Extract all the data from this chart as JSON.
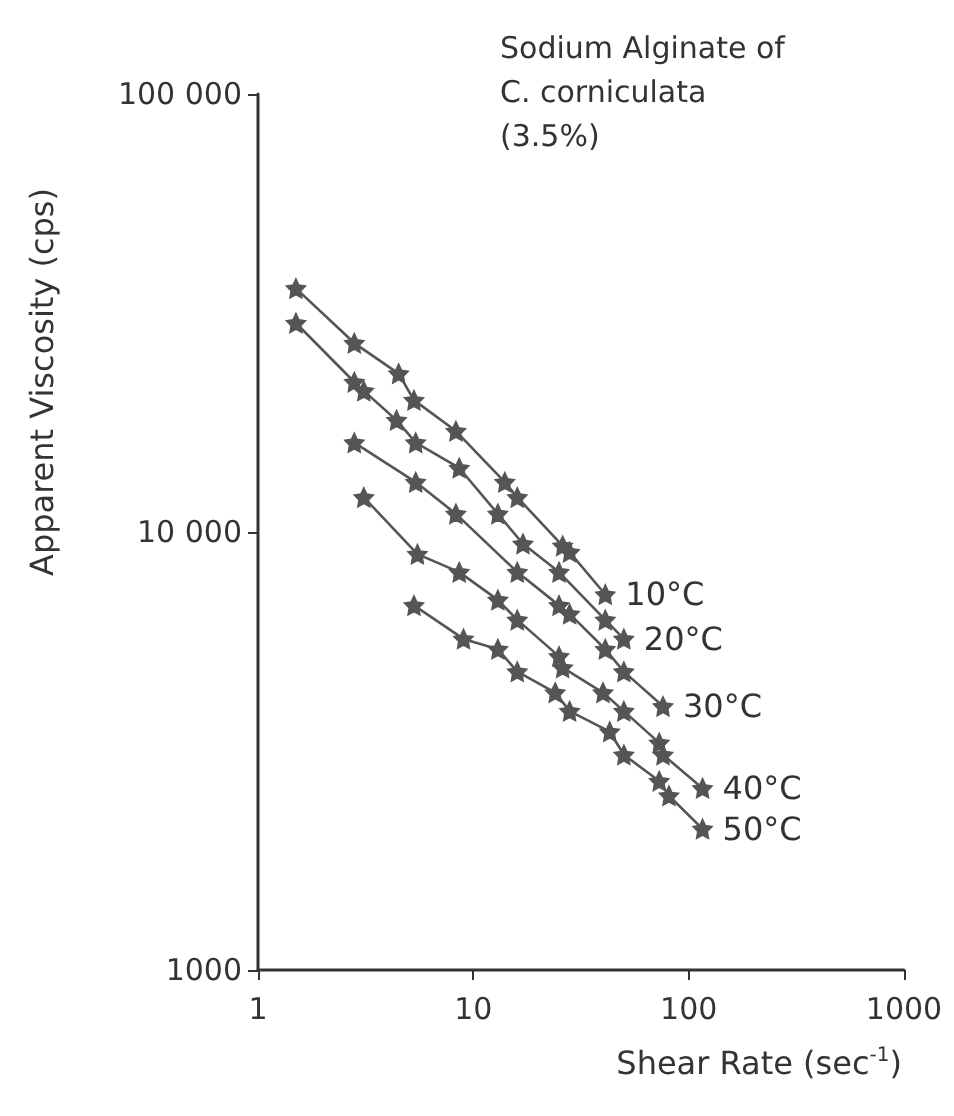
{
  "chart_data": {
    "type": "line",
    "title": "Sodium Alginate of C. corniculata (3.5%)",
    "xlabel": "Shear Rate (sec$^{-1}$)",
    "ylabel": "Apparent Viscosity (cps)",
    "log": "xy",
    "xlim": [
      1,
      1000
    ],
    "xticks": [
      1,
      10,
      100,
      {
        "value": 1000,
        "label": "1000"
      }
    ],
    "ylim": [
      1000,
      100000
    ],
    "yticks": [
      {
        "value": 1000,
        "label": "1000"
      },
      {
        "value": 10000,
        "label": "10 000"
      },
      {
        "value": 100000,
        "label": "100 000"
      }
    ],
    "grid": false,
    "legend": false,
    "marker": "star",
    "line_style": "solid",
    "series": [
      {
        "name": "10°C",
        "color": "#555555",
        "x": [
          1.5,
          2.8,
          4.5,
          5.3,
          8.3,
          14,
          16,
          26,
          28,
          41
        ],
        "values": [
          36000,
          27000,
          23000,
          20000,
          17000,
          13000,
          12000,
          9300,
          9000,
          7200
        ]
      },
      {
        "name": "20°C",
        "color": "#555555",
        "x": [
          1.5,
          2.8,
          3.1,
          4.4,
          5.4,
          8.6,
          13,
          17,
          25,
          41,
          50
        ],
        "values": [
          30000,
          22000,
          21000,
          18000,
          16000,
          14000,
          11000,
          9400,
          8100,
          6300,
          5700
        ]
      },
      {
        "name": "30°C",
        "color": "#555555",
        "x": [
          2.8,
          5.4,
          8.3,
          16,
          25,
          28,
          41,
          50,
          76
        ],
        "values": [
          16000,
          13000,
          11000,
          8100,
          6800,
          6500,
          5400,
          4800,
          4000
        ]
      },
      {
        "name": "40°C",
        "color": "#555555",
        "x": [
          3.1,
          5.5,
          8.6,
          13,
          16,
          25,
          26,
          40,
          50,
          73,
          76,
          116
        ],
        "values": [
          12000,
          8900,
          8100,
          7000,
          6300,
          5200,
          4900,
          4300,
          3900,
          3300,
          3100,
          2600
        ]
      },
      {
        "name": "50°C",
        "color": "#555555",
        "x": [
          5.3,
          9.0,
          13,
          16,
          24,
          28,
          43,
          50,
          73,
          81,
          116
        ],
        "values": [
          6800,
          5700,
          5400,
          4800,
          4300,
          3900,
          3500,
          3100,
          2700,
          2500,
          2100
        ]
      }
    ]
  }
}
